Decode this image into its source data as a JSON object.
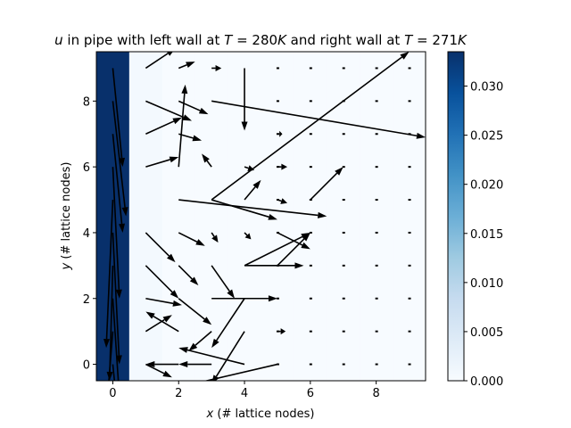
{
  "chart_data": {
    "type": "quiver",
    "title": "u in pipe with left wall at T = 280K and right wall at T = 271K",
    "title_parts": {
      "var": "u",
      "text1": " in pipe with left wall at ",
      "t1": "T",
      "eq1": " = 280",
      "k1": "K",
      "text2": " and right wall at ",
      "t2": "T",
      "eq2": " = 271",
      "k2": "K"
    },
    "xlabel": {
      "var": "x",
      "rest": " (# lattice nodes)"
    },
    "ylabel": {
      "var": "y",
      "rest": " (# lattice nodes)"
    },
    "xlim": [
      -0.5,
      9.5
    ],
    "ylim": [
      -0.5,
      9.5
    ],
    "xticks": [
      0,
      2,
      4,
      6,
      8
    ],
    "yticks": [
      0,
      2,
      4,
      6,
      8
    ],
    "colorbar": {
      "colormap": "Blues",
      "range": [
        0.0,
        0.0335
      ],
      "ticks": [
        "0.000",
        "0.005",
        "0.010",
        "0.015",
        "0.020",
        "0.025",
        "0.030"
      ],
      "tick_values": [
        0.0,
        0.005,
        0.01,
        0.015,
        0.02,
        0.025,
        0.03
      ]
    },
    "heatmap": {
      "columns": [
        0,
        1,
        2,
        3,
        4,
        5,
        6,
        7,
        8,
        9
      ],
      "column_values": [
        0.0335,
        0.0006,
        0.0,
        0.0,
        0.0,
        0.0,
        0.0,
        0.0,
        0.0,
        0.0
      ]
    },
    "arrows": [
      {
        "x": 3,
        "y": 8,
        "u": 6.5,
        "v": -1.1
      },
      {
        "x": 3,
        "y": 5,
        "u": 6.0,
        "v": 4.5
      },
      {
        "x": 4,
        "y": 9,
        "u": 0.0,
        "v": -1.9
      },
      {
        "x": 2,
        "y": 6,
        "u": 0.2,
        "v": 2.5
      },
      {
        "x": 6,
        "y": 5,
        "u": 1.0,
        "v": 1.0
      },
      {
        "x": 3,
        "y": 5,
        "u": 2.0,
        "v": -0.6
      },
      {
        "x": 2,
        "y": 5,
        "u": 4.5,
        "v": -0.5
      },
      {
        "x": 4,
        "y": 5,
        "u": 0.5,
        "v": 0.6
      },
      {
        "x": 5,
        "y": 3,
        "u": 1.0,
        "v": 1.0
      },
      {
        "x": 4,
        "y": 3,
        "u": 2.0,
        "v": 1.0
      },
      {
        "x": 4,
        "y": 3,
        "u": 1.8,
        "v": 0.0
      },
      {
        "x": 3,
        "y": 2,
        "u": 2.0,
        "v": 0.0
      },
      {
        "x": 3,
        "y": 3,
        "u": 0.7,
        "v": -1.0
      },
      {
        "x": 2,
        "y": 2,
        "u": 1.0,
        "v": -0.8
      },
      {
        "x": 2,
        "y": 1,
        "u": -1.0,
        "v": 0.6
      },
      {
        "x": 4,
        "y": 2,
        "u": -1.0,
        "v": -1.5
      },
      {
        "x": 3,
        "y": 1,
        "u": -0.7,
        "v": -0.6
      },
      {
        "x": 4,
        "y": 1,
        "u": -1.0,
        "v": -1.6
      },
      {
        "x": 5,
        "y": 0,
        "u": -3.0,
        "v": -0.7
      },
      {
        "x": 4,
        "y": 0,
        "u": -2.0,
        "v": 0.5
      },
      {
        "x": 2,
        "y": 0,
        "u": -1.0,
        "v": 0.0
      },
      {
        "x": 3,
        "y": 0,
        "u": -1.0,
        "v": 0.0
      },
      {
        "x": 1,
        "y": 8,
        "u": 1.4,
        "v": -0.6
      },
      {
        "x": 1,
        "y": 7,
        "u": 1.1,
        "v": 0.5
      },
      {
        "x": 1,
        "y": 6,
        "u": 1.0,
        "v": 0.3
      },
      {
        "x": 1,
        "y": 4,
        "u": 0.9,
        "v": -0.9
      },
      {
        "x": 1,
        "y": 3,
        "u": 1.0,
        "v": -1.0
      },
      {
        "x": 1,
        "y": 2,
        "u": 1.1,
        "v": -0.2
      },
      {
        "x": 1,
        "y": 1,
        "u": 0.8,
        "v": 0.5
      },
      {
        "x": 1,
        "y": 0,
        "u": 0.8,
        "v": -0.4
      },
      {
        "x": 2,
        "y": 8,
        "u": 0.9,
        "v": -0.4
      },
      {
        "x": 2,
        "y": 7,
        "u": 0.7,
        "v": -0.2
      },
      {
        "x": 2,
        "y": 3,
        "u": 0.6,
        "v": -0.6
      },
      {
        "x": 2,
        "y": 4,
        "u": 0.8,
        "v": -0.4
      },
      {
        "x": 2,
        "y": 9,
        "u": 0.5,
        "v": 0.2
      },
      {
        "x": 1,
        "y": 9,
        "u": 0.9,
        "v": 0.6
      },
      {
        "x": 3,
        "y": 6,
        "u": -0.3,
        "v": 0.4
      },
      {
        "x": 3,
        "y": 9,
        "u": 0.3,
        "v": 0.0
      },
      {
        "x": 3,
        "y": 4,
        "u": 0.2,
        "v": -0.3
      },
      {
        "x": 4,
        "y": 4,
        "u": 0.2,
        "v": -0.2
      },
      {
        "x": 4,
        "y": 6,
        "u": 0.3,
        "v": -0.1
      },
      {
        "x": 5,
        "y": 6,
        "u": 0.3,
        "v": 0.0
      },
      {
        "x": 5,
        "y": 5,
        "u": 0.3,
        "v": -0.1
      },
      {
        "x": 5,
        "y": 7,
        "u": 0.15,
        "v": 0.0
      },
      {
        "x": 5,
        "y": 1,
        "u": 0.25,
        "v": 0.0
      },
      {
        "x": 5,
        "y": 4,
        "u": 1.0,
        "v": -0.5
      },
      {
        "x": 0,
        "y": 9,
        "u": 0.3,
        "v": -3.0
      },
      {
        "x": 0,
        "y": 8,
        "u": 0.4,
        "v": -3.5
      },
      {
        "x": 0,
        "y": 7,
        "u": 0.3,
        "v": -3.0
      },
      {
        "x": 0,
        "y": 6,
        "u": 0.2,
        "v": -4.0
      },
      {
        "x": 0,
        "y": 5,
        "u": -0.2,
        "v": -4.5
      },
      {
        "x": 0,
        "y": 4,
        "u": 0.2,
        "v": -4.0
      },
      {
        "x": 0,
        "y": 3,
        "u": -0.1,
        "v": -3.5
      },
      {
        "x": 0,
        "y": 2,
        "u": 0.2,
        "v": -3.0
      },
      {
        "x": 0,
        "y": 1,
        "u": -0.2,
        "v": -2.5
      },
      {
        "x": 0,
        "y": 0,
        "u": 0.2,
        "v": -2.0
      }
    ],
    "grid": false,
    "legend": "none"
  }
}
